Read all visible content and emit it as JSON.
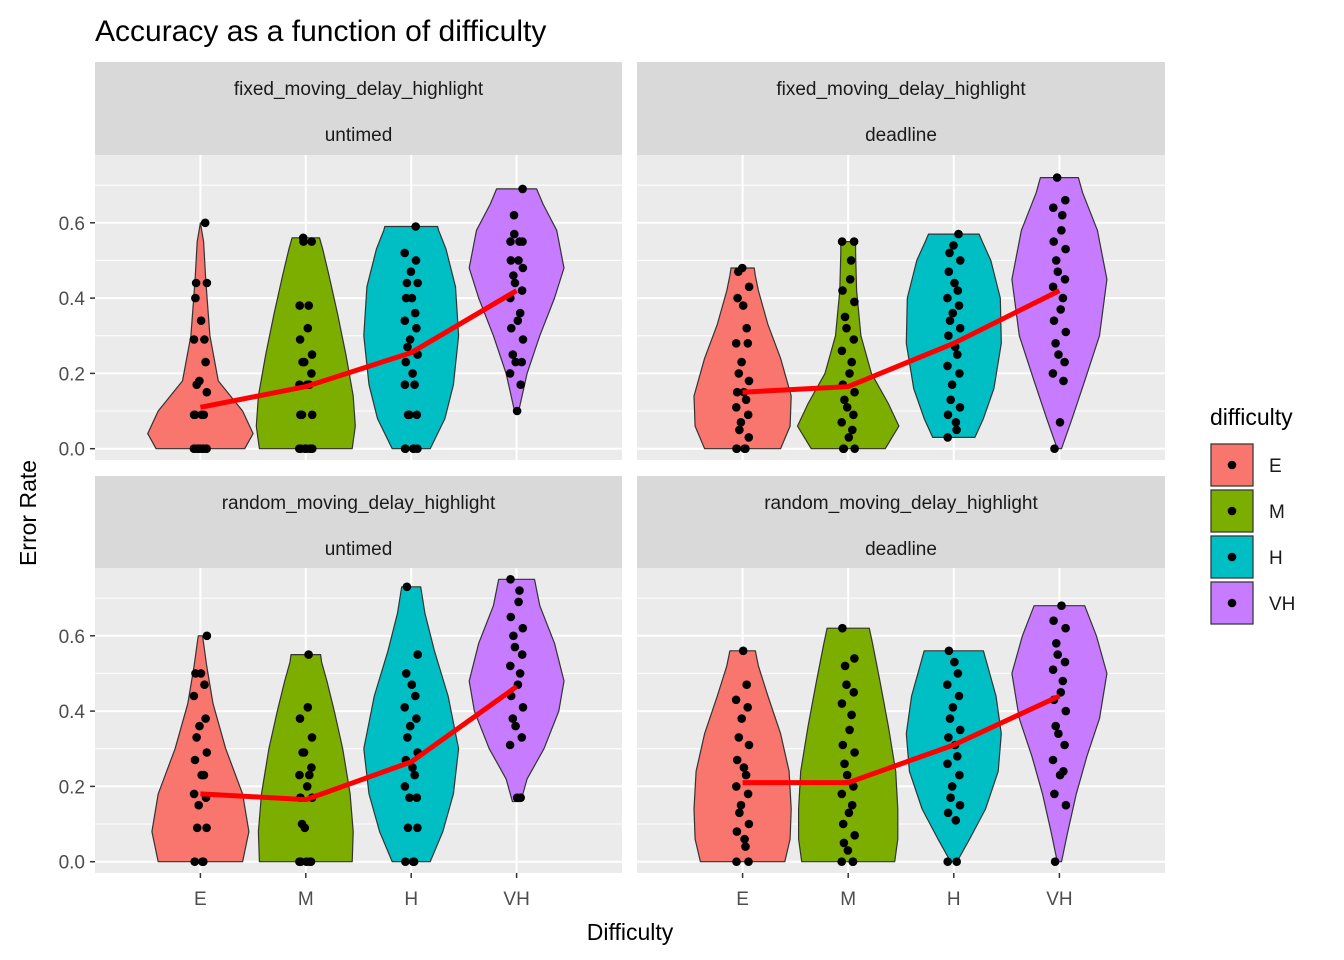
{
  "chart_data": {
    "type": "violin",
    "title": "Accuracy as a function of difficulty",
    "xlabel": "Difficulty",
    "ylabel": "Error Rate",
    "categories": [
      "E",
      "M",
      "H",
      "VH"
    ],
    "ylim": [
      -0.03,
      0.78
    ],
    "y_ticks": [
      0.0,
      0.2,
      0.4,
      0.6
    ],
    "y_tick_labels": [
      "0.0",
      "0.2",
      "0.4",
      "0.6"
    ],
    "grid": true,
    "legend": {
      "title": "difficulty",
      "position": "right",
      "entries": [
        "E",
        "M",
        "H",
        "VH"
      ]
    },
    "colors": {
      "E": "#F8766D",
      "M": "#7CAE00",
      "H": "#00BFC4",
      "VH": "#C77CFF",
      "mean_line": "#FF0000",
      "panel_bg": "#EBEBEB",
      "strip_bg": "#D9D9D9",
      "grid": "#FFFFFF"
    },
    "facets": [
      {
        "strip_top": "fixed_moving_delay_highlight",
        "strip_bottom": "untimed",
        "means": [
          0.11,
          0.165,
          0.255,
          0.42
        ],
        "violins": [
          {
            "min": 0.0,
            "max": 0.6,
            "profile": [
              [
                0.0,
                0.42
              ],
              [
                0.04,
                0.5
              ],
              [
                0.1,
                0.4
              ],
              [
                0.18,
                0.17
              ],
              [
                0.3,
                0.09
              ],
              [
                0.45,
                0.05
              ],
              [
                0.55,
                0.03
              ],
              [
                0.6,
                0.0
              ]
            ]
          },
          {
            "min": 0.0,
            "max": 0.56,
            "profile": [
              [
                0.0,
                0.44
              ],
              [
                0.06,
                0.47
              ],
              [
                0.14,
                0.45
              ],
              [
                0.25,
                0.38
              ],
              [
                0.36,
                0.3
              ],
              [
                0.46,
                0.22
              ],
              [
                0.53,
                0.16
              ],
              [
                0.56,
                0.13
              ]
            ]
          },
          {
            "min": 0.0,
            "max": 0.59,
            "profile": [
              [
                0.0,
                0.18
              ],
              [
                0.08,
                0.32
              ],
              [
                0.17,
                0.4
              ],
              [
                0.3,
                0.45
              ],
              [
                0.43,
                0.42
              ],
              [
                0.53,
                0.33
              ],
              [
                0.58,
                0.26
              ],
              [
                0.59,
                0.25
              ]
            ]
          },
          {
            "min": 0.1,
            "max": 0.69,
            "profile": [
              [
                0.1,
                0.02
              ],
              [
                0.2,
                0.1
              ],
              [
                0.3,
                0.22
              ],
              [
                0.4,
                0.36
              ],
              [
                0.48,
                0.45
              ],
              [
                0.58,
                0.38
              ],
              [
                0.65,
                0.25
              ],
              [
                0.69,
                0.19
              ]
            ]
          }
        ],
        "points": [
          [
            0,
            0.6,
            0,
            0.44,
            0.44,
            0.4,
            0.34,
            0.29,
            0.29,
            0.23,
            0.18,
            0.17,
            0.15,
            0.09,
            0.09,
            0.09,
            0.09,
            0,
            0,
            0,
            0,
            0,
            0,
            0
          ],
          [
            0.56,
            0.55,
            0.55,
            0.38,
            0.38,
            0.32,
            0.29,
            0.25,
            0.23,
            0.23,
            0.2,
            0.17,
            0.17,
            0.17,
            0.09,
            0.09,
            0.09,
            0,
            0,
            0,
            0,
            0,
            0,
            0
          ],
          [
            0.59,
            0.52,
            0.5,
            0.47,
            0.44,
            0.44,
            0.4,
            0.4,
            0.36,
            0.34,
            0.32,
            0.29,
            0.27,
            0.25,
            0.23,
            0.2,
            0.17,
            0.17,
            0.09,
            0.09,
            0.09,
            0,
            0,
            0,
            0,
            0
          ],
          [
            0.69,
            0.62,
            0.57,
            0.55,
            0.55,
            0.55,
            0.5,
            0.5,
            0.48,
            0.46,
            0.44,
            0.42,
            0.4,
            0.36,
            0.34,
            0.32,
            0.29,
            0.25,
            0.23,
            0.23,
            0.2,
            0.17,
            0.1
          ]
        ]
      },
      {
        "strip_top": "fixed_moving_delay_highlight",
        "strip_bottom": "deadline",
        "means": [
          0.15,
          0.165,
          0.28,
          0.42
        ],
        "violins": [
          {
            "min": 0.0,
            "max": 0.48,
            "profile": [
              [
                0.0,
                0.36
              ],
              [
                0.06,
                0.45
              ],
              [
                0.14,
                0.46
              ],
              [
                0.24,
                0.36
              ],
              [
                0.33,
                0.24
              ],
              [
                0.42,
                0.15
              ],
              [
                0.46,
                0.12
              ],
              [
                0.48,
                0.11
              ]
            ]
          },
          {
            "min": 0.0,
            "max": 0.55,
            "profile": [
              [
                0.0,
                0.35
              ],
              [
                0.06,
                0.48
              ],
              [
                0.12,
                0.38
              ],
              [
                0.2,
                0.22
              ],
              [
                0.3,
                0.12
              ],
              [
                0.42,
                0.08
              ],
              [
                0.52,
                0.07
              ],
              [
                0.55,
                0.07
              ]
            ]
          },
          {
            "min": 0.03,
            "max": 0.57,
            "profile": [
              [
                0.03,
                0.2
              ],
              [
                0.08,
                0.28
              ],
              [
                0.16,
                0.38
              ],
              [
                0.28,
                0.45
              ],
              [
                0.4,
                0.44
              ],
              [
                0.5,
                0.35
              ],
              [
                0.55,
                0.27
              ],
              [
                0.57,
                0.24
              ]
            ]
          },
          {
            "min": 0.0,
            "max": 0.72,
            "profile": [
              [
                0.0,
                0.02
              ],
              [
                0.08,
                0.12
              ],
              [
                0.18,
                0.24
              ],
              [
                0.3,
                0.38
              ],
              [
                0.45,
                0.45
              ],
              [
                0.58,
                0.36
              ],
              [
                0.68,
                0.22
              ],
              [
                0.72,
                0.18
              ]
            ]
          }
        ],
        "points": [
          [
            0.48,
            0.47,
            0.43,
            0.4,
            0.38,
            0.32,
            0.28,
            0.28,
            0.23,
            0.2,
            0.18,
            0.15,
            0.15,
            0.13,
            0.11,
            0.09,
            0.07,
            0.05,
            0.03,
            0,
            0,
            0,
            0
          ],
          [
            0.55,
            0.55,
            0.5,
            0.45,
            0.42,
            0.39,
            0.35,
            0.32,
            0.29,
            0.26,
            0.23,
            0.2,
            0.17,
            0.15,
            0.13,
            0.11,
            0.09,
            0.07,
            0.05,
            0.03,
            0,
            0,
            0
          ],
          [
            0.57,
            0.54,
            0.52,
            0.5,
            0.47,
            0.44,
            0.42,
            0.4,
            0.38,
            0.36,
            0.34,
            0.32,
            0.3,
            0.27,
            0.25,
            0.22,
            0.2,
            0.17,
            0.13,
            0.11,
            0.09,
            0.07,
            0.05,
            0.03
          ],
          [
            0.72,
            0.66,
            0.64,
            0.62,
            0.58,
            0.55,
            0.53,
            0.5,
            0.47,
            0.45,
            0.43,
            0.4,
            0.37,
            0.34,
            0.31,
            0.28,
            0.25,
            0.23,
            0.2,
            0.18,
            0.07,
            0
          ]
        ]
      },
      {
        "strip_top": "random_moving_delay_highlight",
        "strip_bottom": "untimed",
        "means": [
          0.18,
          0.165,
          0.265,
          0.465
        ],
        "violins": [
          {
            "min": 0.0,
            "max": 0.6,
            "profile": [
              [
                0.0,
                0.4
              ],
              [
                0.08,
                0.46
              ],
              [
                0.18,
                0.4
              ],
              [
                0.3,
                0.24
              ],
              [
                0.42,
                0.12
              ],
              [
                0.52,
                0.06
              ],
              [
                0.58,
                0.03
              ],
              [
                0.6,
                0.02
              ]
            ]
          },
          {
            "min": 0.0,
            "max": 0.55,
            "profile": [
              [
                0.0,
                0.44
              ],
              [
                0.08,
                0.45
              ],
              [
                0.18,
                0.42
              ],
              [
                0.3,
                0.35
              ],
              [
                0.4,
                0.27
              ],
              [
                0.48,
                0.2
              ],
              [
                0.53,
                0.15
              ],
              [
                0.55,
                0.14
              ]
            ]
          },
          {
            "min": 0.0,
            "max": 0.73,
            "profile": [
              [
                0.0,
                0.18
              ],
              [
                0.08,
                0.3
              ],
              [
                0.18,
                0.4
              ],
              [
                0.3,
                0.45
              ],
              [
                0.44,
                0.35
              ],
              [
                0.56,
                0.22
              ],
              [
                0.66,
                0.13
              ],
              [
                0.73,
                0.09
              ]
            ]
          },
          {
            "min": 0.16,
            "max": 0.75,
            "profile": [
              [
                0.16,
                0.04
              ],
              [
                0.22,
                0.1
              ],
              [
                0.3,
                0.26
              ],
              [
                0.4,
                0.4
              ],
              [
                0.48,
                0.45
              ],
              [
                0.58,
                0.36
              ],
              [
                0.68,
                0.22
              ],
              [
                0.75,
                0.17
              ]
            ]
          }
        ],
        "points": [
          [
            0.6,
            0.5,
            0.5,
            0.47,
            0.44,
            0.38,
            0.36,
            0.33,
            0.29,
            0.27,
            0.23,
            0.23,
            0.18,
            0.17,
            0.15,
            0.09,
            0.09,
            0,
            0,
            0
          ],
          [
            0.55,
            0.41,
            0.38,
            0.33,
            0.29,
            0.29,
            0.25,
            0.23,
            0.23,
            0.2,
            0.17,
            0.17,
            0.1,
            0.09,
            0,
            0,
            0,
            0,
            0
          ],
          [
            0.73,
            0.55,
            0.5,
            0.47,
            0.44,
            0.41,
            0.38,
            0.36,
            0.33,
            0.29,
            0.27,
            0.25,
            0.23,
            0.2,
            0.17,
            0.17,
            0.09,
            0.09,
            0,
            0,
            0
          ],
          [
            0.75,
            0.72,
            0.69,
            0.65,
            0.62,
            0.6,
            0.57,
            0.55,
            0.52,
            0.5,
            0.47,
            0.44,
            0.41,
            0.38,
            0.36,
            0.33,
            0.31,
            0.17,
            0.17
          ]
        ]
      },
      {
        "strip_top": "random_moving_delay_highlight",
        "strip_bottom": "deadline",
        "means": [
          0.21,
          0.21,
          0.31,
          0.44
        ],
        "violins": [
          {
            "min": 0.0,
            "max": 0.56,
            "profile": [
              [
                0.0,
                0.4
              ],
              [
                0.06,
                0.45
              ],
              [
                0.14,
                0.46
              ],
              [
                0.24,
                0.44
              ],
              [
                0.34,
                0.36
              ],
              [
                0.44,
                0.24
              ],
              [
                0.52,
                0.15
              ],
              [
                0.56,
                0.12
              ]
            ]
          },
          {
            "min": 0.0,
            "max": 0.62,
            "profile": [
              [
                0.0,
                0.44
              ],
              [
                0.06,
                0.47
              ],
              [
                0.14,
                0.47
              ],
              [
                0.24,
                0.45
              ],
              [
                0.36,
                0.38
              ],
              [
                0.48,
                0.3
              ],
              [
                0.58,
                0.23
              ],
              [
                0.62,
                0.2
              ]
            ]
          },
          {
            "min": 0.0,
            "max": 0.56,
            "profile": [
              [
                0.0,
                0.03
              ],
              [
                0.06,
                0.15
              ],
              [
                0.14,
                0.3
              ],
              [
                0.24,
                0.42
              ],
              [
                0.34,
                0.45
              ],
              [
                0.44,
                0.4
              ],
              [
                0.52,
                0.32
              ],
              [
                0.56,
                0.28
              ]
            ]
          },
          {
            "min": 0.0,
            "max": 0.68,
            "profile": [
              [
                0.0,
                0.02
              ],
              [
                0.08,
                0.08
              ],
              [
                0.18,
                0.16
              ],
              [
                0.28,
                0.26
              ],
              [
                0.38,
                0.38
              ],
              [
                0.5,
                0.45
              ],
              [
                0.6,
                0.35
              ],
              [
                0.68,
                0.24
              ]
            ]
          }
        ],
        "points": [
          [
            0.56,
            0.47,
            0.43,
            0.41,
            0.38,
            0.33,
            0.31,
            0.27,
            0.25,
            0.23,
            0.2,
            0.18,
            0.15,
            0.13,
            0.1,
            0.08,
            0.06,
            0.04,
            0,
            0
          ],
          [
            0.62,
            0.54,
            0.52,
            0.47,
            0.45,
            0.42,
            0.39,
            0.35,
            0.31,
            0.29,
            0.26,
            0.23,
            0.2,
            0.18,
            0.15,
            0.13,
            0.1,
            0.07,
            0.05,
            0.03,
            0,
            0,
            0
          ],
          [
            0.56,
            0.53,
            0.5,
            0.47,
            0.44,
            0.41,
            0.38,
            0.35,
            0.33,
            0.31,
            0.28,
            0.26,
            0.23,
            0.2,
            0.17,
            0.15,
            0.13,
            0.11,
            0,
            0
          ],
          [
            0.68,
            0.64,
            0.62,
            0.58,
            0.55,
            0.53,
            0.51,
            0.48,
            0.45,
            0.43,
            0.4,
            0.36,
            0.34,
            0.31,
            0.27,
            0.24,
            0.23,
            0.18,
            0.15,
            0
          ]
        ]
      }
    ]
  }
}
